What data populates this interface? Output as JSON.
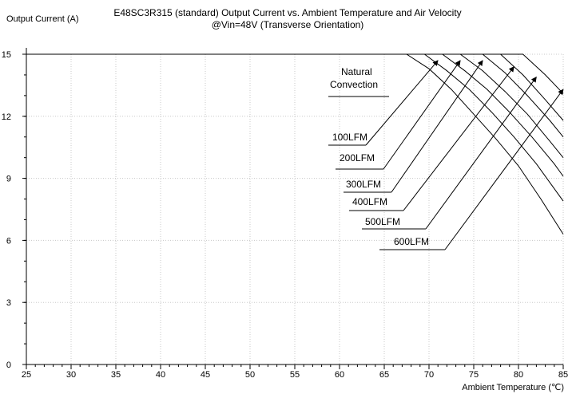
{
  "chart_data": {
    "type": "line",
    "title": "E48SC3R315 (standard)  Output Current vs. Ambient Temperature and Air Velocity",
    "subtitle": "@Vin=48V (Transverse Orientation)",
    "ylabel": "Output Current (A)",
    "xlabel": "Ambient Temperature (℃)",
    "xlim": [
      25,
      85
    ],
    "ylim": [
      0,
      15
    ],
    "x_ticks": [
      "25",
      "30",
      "35",
      "40",
      "45",
      "50",
      "55",
      "60",
      "65",
      "70",
      "75",
      "80",
      "85"
    ],
    "y_ticks": [
      "0",
      "3",
      "6",
      "9",
      "12",
      "15"
    ],
    "grid": true,
    "series": [
      {
        "name": "Natural Convection",
        "x": [
          25,
          67.5,
          70,
          72.5,
          75,
          77.5,
          80,
          82.5,
          85
        ],
        "y": [
          15,
          15,
          14.3,
          13.3,
          12.1,
          10.9,
          9.6,
          8.0,
          6.3
        ]
      },
      {
        "name": "100LFM",
        "x": [
          25,
          69.5,
          72,
          74.5,
          77,
          79.5,
          82,
          84.5,
          85
        ],
        "y": [
          15,
          15,
          14.2,
          13.3,
          12.2,
          11.0,
          9.7,
          8.2,
          7.9
        ]
      },
      {
        "name": "200LFM",
        "x": [
          25,
          71.5,
          74,
          76.5,
          79,
          81.5,
          84,
          85
        ],
        "y": [
          15,
          15,
          14.2,
          13.3,
          12.2,
          11.0,
          9.7,
          9.1
        ]
      },
      {
        "name": "300LFM",
        "x": [
          25,
          73.5,
          76,
          78.5,
          81,
          83.5,
          85
        ],
        "y": [
          15,
          15,
          14.2,
          13.2,
          12.1,
          10.8,
          10.0
        ]
      },
      {
        "name": "400LFM",
        "x": [
          25,
          76,
          78.5,
          81,
          83.5,
          85
        ],
        "y": [
          15,
          15,
          14.1,
          13.0,
          11.8,
          11.0
        ]
      },
      {
        "name": "500LFM",
        "x": [
          25,
          78,
          80.5,
          83,
          85
        ],
        "y": [
          15,
          15,
          14.0,
          12.8,
          11.8
        ]
      },
      {
        "name": "600LFM",
        "x": [
          25,
          80.5,
          83,
          85
        ],
        "y": [
          15,
          15,
          14.0,
          13.1
        ]
      }
    ],
    "annotations": [
      {
        "text": "Natural",
        "arrow_to": [
          68.5,
          14.7
        ]
      },
      {
        "text": "Convection"
      },
      {
        "text": "100LFM",
        "arrow_to": [
          71,
          14.7
        ]
      },
      {
        "text": "200LFM",
        "arrow_to": [
          73.5,
          14.7
        ]
      },
      {
        "text": "300LFM",
        "arrow_to": [
          76,
          14.7
        ]
      },
      {
        "text": "400LFM",
        "arrow_to": [
          79.5,
          14.4
        ]
      },
      {
        "text": "500LFM",
        "arrow_to": [
          82,
          13.9
        ]
      },
      {
        "text": "600LFM",
        "arrow_to": [
          85,
          13.3
        ]
      }
    ]
  }
}
